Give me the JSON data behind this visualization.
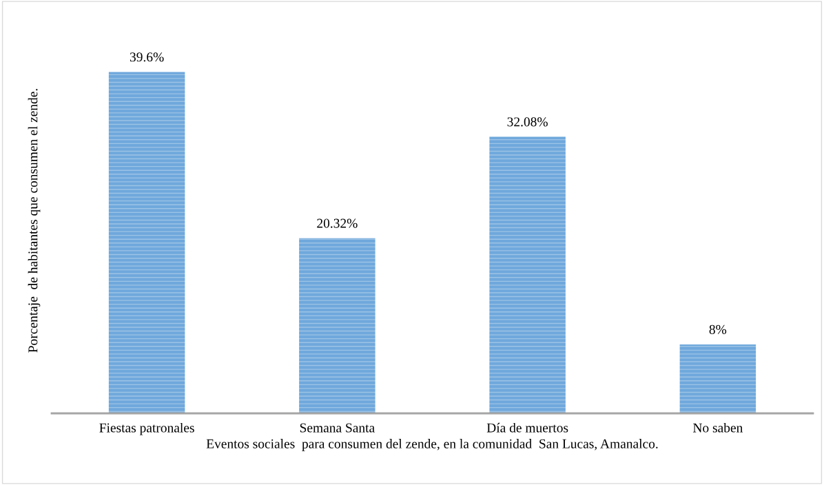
{
  "chart_data": {
    "type": "bar",
    "xlabel": "Eventos sociales  para consumen del zende, en la comunidad  San Lucas, Amanalco.",
    "ylabel": "Porcentaje  de habitantes que consumen el zende.",
    "categories": [
      "Fiestas patronales",
      "Semana Santa",
      "Día de muertos",
      "No saben"
    ],
    "values": [
      39.6,
      20.32,
      32.08,
      8
    ],
    "value_labels": [
      "39.6%",
      "20.32%",
      "32.08%",
      "8%"
    ],
    "color": "#6fa8dc",
    "grid": false,
    "legend": false
  }
}
